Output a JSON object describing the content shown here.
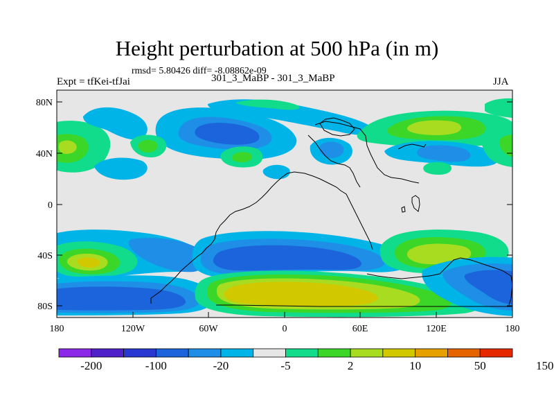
{
  "title": "Height perturbation at 500 hPa (in m)",
  "stats": "rmsd= 5.80426 diff= -8.08862e-09",
  "experiment_label": "Expt = tfKei-tfJai",
  "experiment_name": "301_3_MaBP - 301_3_MaBP",
  "season": "JJA",
  "lat_ticks": [
    "80N",
    "40N",
    "0",
    "40S",
    "80S"
  ],
  "lon_ticks": [
    "180",
    "120W",
    "60W",
    "0",
    "60E",
    "120E",
    "180"
  ],
  "colorbar": {
    "colors": [
      "#8c28e8",
      "#5020c8",
      "#2838d0",
      "#1c64dc",
      "#1e8ee6",
      "#00b4e8",
      "#e6e6e6",
      "#10dc8c",
      "#3cd628",
      "#a8dc20",
      "#d2c800",
      "#e6a000",
      "#e66400",
      "#e62800"
    ],
    "labels": [
      "-200",
      "-100",
      "-20",
      "-5",
      "2",
      "10",
      "50",
      "150"
    ]
  },
  "palette": {
    "lightblue": "#00b4e8",
    "midblue": "#1e8ee6",
    "blue": "#1c64dc",
    "darkblue": "#2838d0",
    "green": "#10dc8c",
    "lime": "#3cd628",
    "yellowgreen": "#a8dc20",
    "ochre": "#d2c800",
    "orange": "#e6a000",
    "neutral": "#e6e6e6"
  }
}
